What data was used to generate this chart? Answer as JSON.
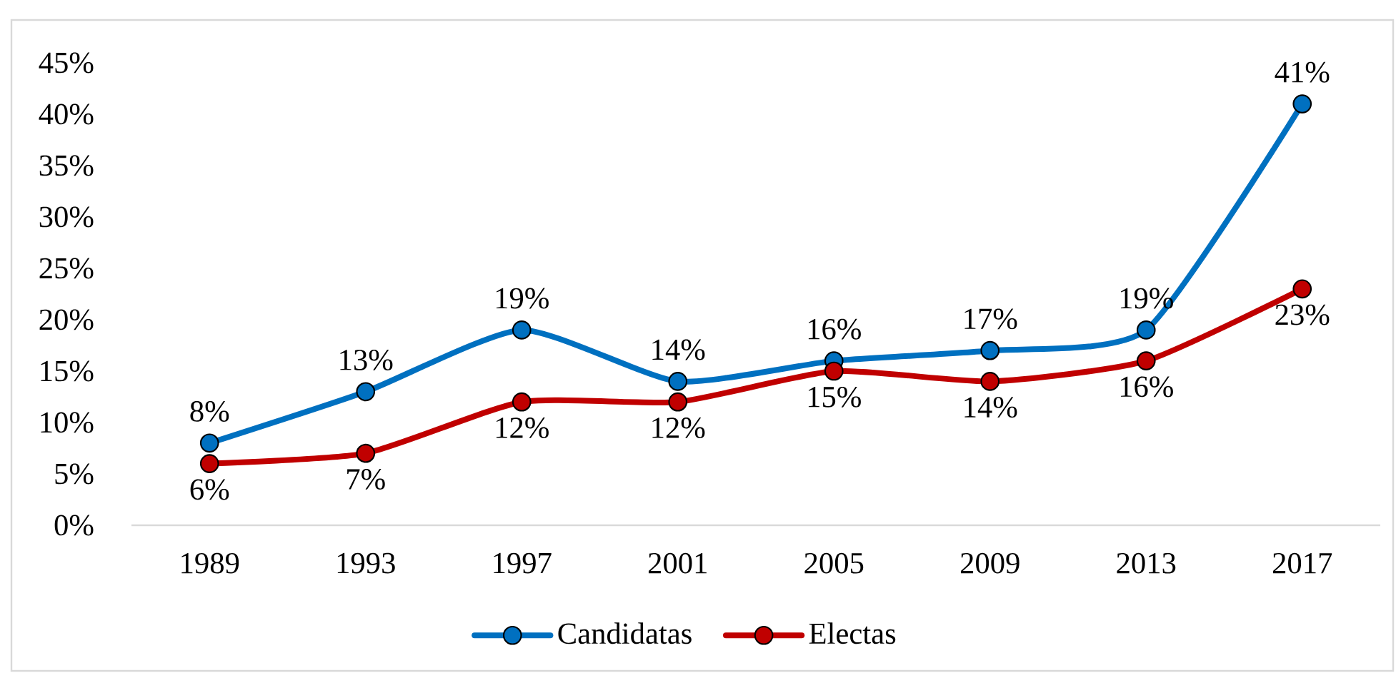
{
  "chart_data": {
    "type": "line",
    "categories": [
      "1989",
      "1993",
      "1997",
      "2001",
      "2005",
      "2009",
      "2013",
      "2017"
    ],
    "series": [
      {
        "name": "Candidatas",
        "color": "#0070c0",
        "values": [
          8,
          13,
          19,
          14,
          16,
          17,
          19,
          41
        ],
        "value_labels": [
          "8%",
          "13%",
          "19%",
          "14%",
          "16%",
          "17%",
          "19%",
          "41%"
        ]
      },
      {
        "name": "Electas",
        "color": "#c00000",
        "values": [
          6,
          7,
          12,
          12,
          15,
          14,
          16,
          23
        ],
        "value_labels": [
          "6%",
          "7%",
          "12%",
          "12%",
          "15%",
          "14%",
          "16%",
          "23%"
        ]
      }
    ],
    "ylim": [
      0,
      45
    ],
    "yticks": [
      {
        "value": 0,
        "label": "0%"
      },
      {
        "value": 5,
        "label": "5%"
      },
      {
        "value": 10,
        "label": "10%"
      },
      {
        "value": 15,
        "label": "15%"
      },
      {
        "value": 20,
        "label": "20%"
      },
      {
        "value": 25,
        "label": "25%"
      },
      {
        "value": 30,
        "label": "30%"
      },
      {
        "value": 35,
        "label": "35%"
      },
      {
        "value": 40,
        "label": "40%"
      },
      {
        "value": 45,
        "label": "45%"
      }
    ],
    "legend": "bottom",
    "marker": "circle"
  }
}
